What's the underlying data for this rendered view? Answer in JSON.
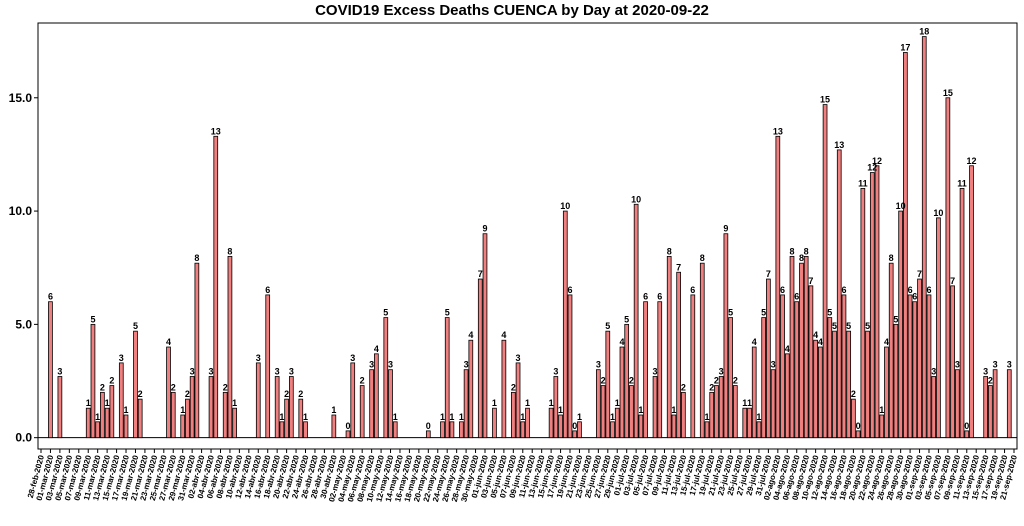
{
  "chart_data": {
    "type": "bar",
    "title": "COVID19 Excess Deaths CUENCA by Day at 2020-09-22",
    "xlabel": "",
    "ylabel": "",
    "ylim": [
      -0.5,
      18.3
    ],
    "yticks": [
      0,
      5,
      10,
      15
    ],
    "ytick_labels": [
      "0.0",
      "5.0",
      "10.0",
      "15.0"
    ],
    "bar_color": "#f08080",
    "x_start": "2020-02-28",
    "x_end": "2020-09-21",
    "x_ticks": [
      "28-feb-2020",
      "01-mar-2020",
      "03-mar-2020",
      "05-mar-2020",
      "07-mar-2020",
      "09-mar-2020",
      "11-mar-2020",
      "13-mar-2020",
      "15-mar-2020",
      "17-mar-2020",
      "19-mar-2020",
      "21-mar-2020",
      "23-mar-2020",
      "25-mar-2020",
      "27-mar-2020",
      "29-mar-2020",
      "31-mar-2020",
      "02-abr-2020",
      "04-abr-2020",
      "06-abr-2020",
      "08-abr-2020",
      "10-abr-2020",
      "12-abr-2020",
      "14-abr-2020",
      "16-abr-2020",
      "18-abr-2020",
      "20-abr-2020",
      "22-abr-2020",
      "24-abr-2020",
      "26-abr-2020",
      "28-abr-2020",
      "30-abr-2020",
      "02-may-2020",
      "04-may-2020",
      "06-may-2020",
      "08-may-2020",
      "10-may-2020",
      "12-may-2020",
      "14-may-2020",
      "16-may-2020",
      "18-may-2020",
      "20-may-2020",
      "22-may-2020",
      "24-may-2020",
      "26-may-2020",
      "28-may-2020",
      "30-may-2020",
      "01-jun-2020",
      "03-jun-2020",
      "05-jun-2020",
      "07-jun-2020",
      "09-jun-2020",
      "11-jun-2020",
      "13-jun-2020",
      "15-jun-2020",
      "17-jun-2020",
      "19-jun-2020",
      "21-jun-2020",
      "23-jun-2020",
      "25-jun-2020",
      "27-jun-2020",
      "29-jun-2020",
      "01-jul-2020",
      "03-jul-2020",
      "05-jul-2020",
      "07-jul-2020",
      "09-jul-2020",
      "11-jul-2020",
      "13-jul-2020",
      "15-jul-2020",
      "17-jul-2020",
      "19-jul-2020",
      "21-jul-2020",
      "23-jul-2020",
      "25-jul-2020",
      "27-jul-2020",
      "29-jul-2020",
      "31-jul-2020",
      "02-ago-2020",
      "04-ago-2020",
      "06-ago-2020",
      "08-ago-2020",
      "10-ago-2020",
      "12-ago-2020",
      "14-ago-2020",
      "16-ago-2020",
      "18-ago-2020",
      "20-ago-2020",
      "22-ago-2020",
      "24-ago-2020",
      "26-ago-2020",
      "28-ago-2020",
      "30-ago-2020",
      "01-sep-2020",
      "03-sep-2020",
      "05-sep-2020",
      "07-sep-2020",
      "09-sep-2020",
      "11-sep-2020",
      "13-sep-2020",
      "15-sep-2020",
      "17-sep-2020",
      "19-sep-2020",
      "21-sep-2020"
    ],
    "points": [
      {
        "date": "2020-03-01",
        "value": 6.0,
        "label": "6"
      },
      {
        "date": "2020-03-03",
        "value": 2.7,
        "label": "3"
      },
      {
        "date": "2020-03-09",
        "value": 1.3,
        "label": "1"
      },
      {
        "date": "2020-03-10",
        "value": 5.0,
        "label": "5"
      },
      {
        "date": "2020-03-11",
        "value": 0.7,
        "label": "1"
      },
      {
        "date": "2020-03-12",
        "value": 2.0,
        "label": "2"
      },
      {
        "date": "2020-03-13",
        "value": 1.3,
        "label": "1"
      },
      {
        "date": "2020-03-14",
        "value": 2.3,
        "label": "2"
      },
      {
        "date": "2020-03-16",
        "value": 3.3,
        "label": "3"
      },
      {
        "date": "2020-03-17",
        "value": 1.0,
        "label": "1"
      },
      {
        "date": "2020-03-19",
        "value": 4.7,
        "label": "5"
      },
      {
        "date": "2020-03-20",
        "value": 1.7,
        "label": "2"
      },
      {
        "date": "2020-03-26",
        "value": 4.0,
        "label": "4"
      },
      {
        "date": "2020-03-27",
        "value": 2.0,
        "label": "2"
      },
      {
        "date": "2020-03-29",
        "value": 1.0,
        "label": "1"
      },
      {
        "date": "2020-03-30",
        "value": 1.7,
        "label": "2"
      },
      {
        "date": "2020-03-31",
        "value": 2.7,
        "label": "3"
      },
      {
        "date": "2020-04-01",
        "value": 7.7,
        "label": "8"
      },
      {
        "date": "2020-04-04",
        "value": 2.7,
        "label": "3"
      },
      {
        "date": "2020-04-05",
        "value": 13.3,
        "label": "13"
      },
      {
        "date": "2020-04-07",
        "value": 2.0,
        "label": "2"
      },
      {
        "date": "2020-04-08",
        "value": 8.0,
        "label": "8"
      },
      {
        "date": "2020-04-09",
        "value": 1.3,
        "label": "1"
      },
      {
        "date": "2020-04-14",
        "value": 3.3,
        "label": "3"
      },
      {
        "date": "2020-04-16",
        "value": 6.3,
        "label": "6"
      },
      {
        "date": "2020-04-18",
        "value": 2.7,
        "label": "3"
      },
      {
        "date": "2020-04-19",
        "value": 0.7,
        "label": "1"
      },
      {
        "date": "2020-04-20",
        "value": 1.7,
        "label": "2"
      },
      {
        "date": "2020-04-21",
        "value": 2.7,
        "label": "3"
      },
      {
        "date": "2020-04-23",
        "value": 1.7,
        "label": "2"
      },
      {
        "date": "2020-04-24",
        "value": 0.7,
        "label": "1"
      },
      {
        "date": "2020-04-30",
        "value": 1.0,
        "label": "1"
      },
      {
        "date": "2020-05-03",
        "value": 0.3,
        "label": "0"
      },
      {
        "date": "2020-05-04",
        "value": 3.3,
        "label": "3"
      },
      {
        "date": "2020-05-06",
        "value": 2.3,
        "label": "2"
      },
      {
        "date": "2020-05-08",
        "value": 3.0,
        "label": "3"
      },
      {
        "date": "2020-05-09",
        "value": 3.7,
        "label": "4"
      },
      {
        "date": "2020-05-11",
        "value": 5.3,
        "label": "5"
      },
      {
        "date": "2020-05-12",
        "value": 3.0,
        "label": "3"
      },
      {
        "date": "2020-05-13",
        "value": 0.7,
        "label": "1"
      },
      {
        "date": "2020-05-20",
        "value": 0.3,
        "label": "0"
      },
      {
        "date": "2020-05-23",
        "value": 0.7,
        "label": "1"
      },
      {
        "date": "2020-05-24",
        "value": 5.3,
        "label": "5"
      },
      {
        "date": "2020-05-25",
        "value": 0.7,
        "label": "1"
      },
      {
        "date": "2020-05-27",
        "value": 0.7,
        "label": "1"
      },
      {
        "date": "2020-05-28",
        "value": 3.0,
        "label": "3"
      },
      {
        "date": "2020-05-29",
        "value": 4.3,
        "label": "4"
      },
      {
        "date": "2020-05-31",
        "value": 7.0,
        "label": "7"
      },
      {
        "date": "2020-06-01",
        "value": 9.0,
        "label": "9"
      },
      {
        "date": "2020-06-03",
        "value": 1.3,
        "label": "1"
      },
      {
        "date": "2020-06-05",
        "value": 4.3,
        "label": "4"
      },
      {
        "date": "2020-06-07",
        "value": 2.0,
        "label": "2"
      },
      {
        "date": "2020-06-08",
        "value": 3.3,
        "label": "3"
      },
      {
        "date": "2020-06-09",
        "value": 0.7,
        "label": "1"
      },
      {
        "date": "2020-06-10",
        "value": 1.3,
        "label": "1"
      },
      {
        "date": "2020-06-15",
        "value": 1.3,
        "label": "1"
      },
      {
        "date": "2020-06-16",
        "value": 2.7,
        "label": "3"
      },
      {
        "date": "2020-06-17",
        "value": 1.0,
        "label": "1"
      },
      {
        "date": "2020-06-18",
        "value": 10.0,
        "label": "10"
      },
      {
        "date": "2020-06-19",
        "value": 6.3,
        "label": "6"
      },
      {
        "date": "2020-06-20",
        "value": 0.3,
        "label": "0"
      },
      {
        "date": "2020-06-21",
        "value": 0.7,
        "label": "1"
      },
      {
        "date": "2020-06-25",
        "value": 3.0,
        "label": "3"
      },
      {
        "date": "2020-06-26",
        "value": 2.3,
        "label": "2"
      },
      {
        "date": "2020-06-27",
        "value": 4.7,
        "label": "5"
      },
      {
        "date": "2020-06-28",
        "value": 0.7,
        "label": "1"
      },
      {
        "date": "2020-06-29",
        "value": 1.3,
        "label": "1"
      },
      {
        "date": "2020-06-30",
        "value": 4.0,
        "label": "4"
      },
      {
        "date": "2020-07-01",
        "value": 5.0,
        "label": "5"
      },
      {
        "date": "2020-07-02",
        "value": 2.3,
        "label": "2"
      },
      {
        "date": "2020-07-03",
        "value": 10.3,
        "label": "10"
      },
      {
        "date": "2020-07-04",
        "value": 1.0,
        "label": "1"
      },
      {
        "date": "2020-07-05",
        "value": 6.0,
        "label": "6"
      },
      {
        "date": "2020-07-07",
        "value": 2.7,
        "label": "3"
      },
      {
        "date": "2020-07-08",
        "value": 6.0,
        "label": "6"
      },
      {
        "date": "2020-07-10",
        "value": 8.0,
        "label": "8"
      },
      {
        "date": "2020-07-11",
        "value": 1.0,
        "label": "1"
      },
      {
        "date": "2020-07-12",
        "value": 7.3,
        "label": "7"
      },
      {
        "date": "2020-07-13",
        "value": 2.0,
        "label": "2"
      },
      {
        "date": "2020-07-15",
        "value": 6.3,
        "label": "6"
      },
      {
        "date": "2020-07-17",
        "value": 7.7,
        "label": "8"
      },
      {
        "date": "2020-07-18",
        "value": 0.7,
        "label": "1"
      },
      {
        "date": "2020-07-19",
        "value": 2.0,
        "label": "2"
      },
      {
        "date": "2020-07-20",
        "value": 2.3,
        "label": "2"
      },
      {
        "date": "2020-07-21",
        "value": 2.7,
        "label": "3"
      },
      {
        "date": "2020-07-22",
        "value": 9.0,
        "label": "9"
      },
      {
        "date": "2020-07-23",
        "value": 5.3,
        "label": "5"
      },
      {
        "date": "2020-07-24",
        "value": 2.3,
        "label": "2"
      },
      {
        "date": "2020-07-26",
        "value": 1.3,
        "label": "1"
      },
      {
        "date": "2020-07-27",
        "value": 1.3,
        "label": "1"
      },
      {
        "date": "2020-07-28",
        "value": 4.0,
        "label": "4"
      },
      {
        "date": "2020-07-29",
        "value": 0.7,
        "label": "1"
      },
      {
        "date": "2020-07-30",
        "value": 5.3,
        "label": "5"
      },
      {
        "date": "2020-07-31",
        "value": 7.0,
        "label": "7"
      },
      {
        "date": "2020-08-01",
        "value": 3.0,
        "label": "3"
      },
      {
        "date": "2020-08-02",
        "value": 13.3,
        "label": "13"
      },
      {
        "date": "2020-08-03",
        "value": 6.3,
        "label": "6"
      },
      {
        "date": "2020-08-04",
        "value": 3.7,
        "label": "4"
      },
      {
        "date": "2020-08-05",
        "value": 8.0,
        "label": "8"
      },
      {
        "date": "2020-08-06",
        "value": 6.0,
        "label": "6"
      },
      {
        "date": "2020-08-07",
        "value": 7.7,
        "label": "8"
      },
      {
        "date": "2020-08-08",
        "value": 8.0,
        "label": "8"
      },
      {
        "date": "2020-08-09",
        "value": 6.7,
        "label": "7"
      },
      {
        "date": "2020-08-10",
        "value": 4.3,
        "label": "4"
      },
      {
        "date": "2020-08-11",
        "value": 4.0,
        "label": "4"
      },
      {
        "date": "2020-08-12",
        "value": 14.7,
        "label": "15"
      },
      {
        "date": "2020-08-13",
        "value": 5.3,
        "label": "5"
      },
      {
        "date": "2020-08-14",
        "value": 4.7,
        "label": "5"
      },
      {
        "date": "2020-08-15",
        "value": 12.7,
        "label": "13"
      },
      {
        "date": "2020-08-16",
        "value": 6.3,
        "label": "6"
      },
      {
        "date": "2020-08-17",
        "value": 4.7,
        "label": "5"
      },
      {
        "date": "2020-08-18",
        "value": 1.7,
        "label": "2"
      },
      {
        "date": "2020-08-19",
        "value": 0.3,
        "label": "0"
      },
      {
        "date": "2020-08-20",
        "value": 11.0,
        "label": "11"
      },
      {
        "date": "2020-08-21",
        "value": 4.7,
        "label": "5"
      },
      {
        "date": "2020-08-22",
        "value": 11.7,
        "label": "12"
      },
      {
        "date": "2020-08-23",
        "value": 12.0,
        "label": "12"
      },
      {
        "date": "2020-08-24",
        "value": 1.0,
        "label": "1"
      },
      {
        "date": "2020-08-25",
        "value": 4.0,
        "label": "4"
      },
      {
        "date": "2020-08-26",
        "value": 7.7,
        "label": "8"
      },
      {
        "date": "2020-08-27",
        "value": 5.0,
        "label": "5"
      },
      {
        "date": "2020-08-28",
        "value": 10.0,
        "label": "10"
      },
      {
        "date": "2020-08-29",
        "value": 17.0,
        "label": "17"
      },
      {
        "date": "2020-08-30",
        "value": 6.3,
        "label": "6"
      },
      {
        "date": "2020-08-31",
        "value": 6.0,
        "label": "6"
      },
      {
        "date": "2020-09-01",
        "value": 7.0,
        "label": "7"
      },
      {
        "date": "2020-09-02",
        "value": 17.7,
        "label": "18"
      },
      {
        "date": "2020-09-03",
        "value": 6.3,
        "label": "6"
      },
      {
        "date": "2020-09-04",
        "value": 2.7,
        "label": "3"
      },
      {
        "date": "2020-09-05",
        "value": 9.7,
        "label": "10"
      },
      {
        "date": "2020-09-07",
        "value": 15.0,
        "label": "15"
      },
      {
        "date": "2020-09-08",
        "value": 6.7,
        "label": "7"
      },
      {
        "date": "2020-09-09",
        "value": 3.0,
        "label": "3"
      },
      {
        "date": "2020-09-10",
        "value": 11.0,
        "label": "11"
      },
      {
        "date": "2020-09-11",
        "value": 0.3,
        "label": "0"
      },
      {
        "date": "2020-09-12",
        "value": 12.0,
        "label": "12"
      },
      {
        "date": "2020-09-15",
        "value": 2.7,
        "label": "3"
      },
      {
        "date": "2020-09-16",
        "value": 2.3,
        "label": "2"
      },
      {
        "date": "2020-09-17",
        "value": 3.0,
        "label": "3"
      },
      {
        "date": "2020-09-20",
        "value": 3.0,
        "label": "3"
      }
    ]
  }
}
